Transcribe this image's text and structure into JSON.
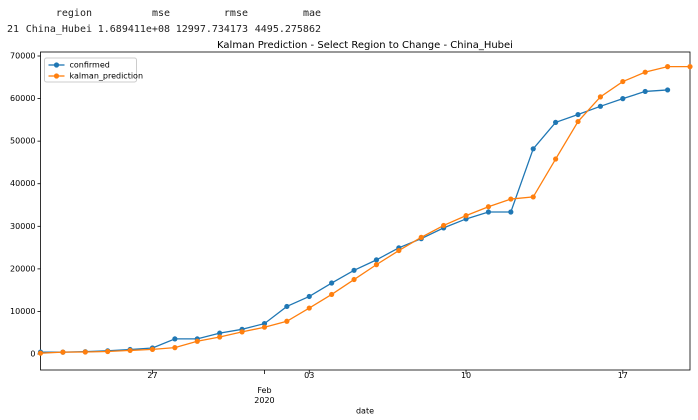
{
  "table": {
    "columns": [
      "region",
      "mse",
      "rmse",
      "mae"
    ],
    "rows": [
      [
        "21",
        "China_Hubei",
        "1.689411e+08",
        "12997.734173",
        "4495.275862"
      ]
    ]
  },
  "chart_data": {
    "type": "line",
    "title": "Kalman Prediction - Select Region to Change - China_Hubei",
    "xlabel": "date",
    "x": [
      "2020-01-22",
      "2020-01-23",
      "2020-01-24",
      "2020-01-25",
      "2020-01-26",
      "2020-01-27",
      "2020-01-28",
      "2020-01-29",
      "2020-01-30",
      "2020-01-31",
      "2020-02-01",
      "2020-02-02",
      "2020-02-03",
      "2020-02-04",
      "2020-02-05",
      "2020-02-06",
      "2020-02-07",
      "2020-02-08",
      "2020-02-09",
      "2020-02-10",
      "2020-02-11",
      "2020-02-12",
      "2020-02-13",
      "2020-02-14",
      "2020-02-15",
      "2020-02-16",
      "2020-02-17",
      "2020-02-18",
      "2020-02-19",
      "2020-02-20"
    ],
    "series": [
      {
        "name": "confirmed",
        "color": "#1f77b4",
        "values": [
          444,
          444,
          549,
          761,
          1058,
          1423,
          3554,
          3554,
          4903,
          5806,
          7153,
          11177,
          13522,
          16678,
          19665,
          22112,
          24953,
          27100,
          29631,
          31728,
          33366,
          33366,
          48206,
          54406,
          56249,
          58182,
          59989,
          61682,
          62031,
          null
        ]
      },
      {
        "name": "kalman_prediction",
        "color": "#ff7f0e",
        "values": [
          200,
          440,
          480,
          600,
          850,
          1100,
          1500,
          3000,
          4000,
          5200,
          6300,
          7700,
          10800,
          14000,
          17500,
          21000,
          24300,
          27400,
          30200,
          32500,
          34600,
          36400,
          36900,
          45800,
          54600,
          60400,
          64000,
          66200,
          67500,
          67500
        ]
      }
    ],
    "xlim": [
      "2020-01-22",
      "2020-02-20"
    ],
    "xticks": [
      {
        "value": "2020-01-27",
        "label": "27"
      },
      {
        "value": "2020-02-01",
        "label": "Feb\n2020"
      },
      {
        "value": "2020-02-03",
        "label": "03"
      },
      {
        "value": "2020-02-10",
        "label": "10"
      },
      {
        "value": "2020-02-17",
        "label": "17"
      }
    ],
    "ylim": [
      -3750,
      70940
    ],
    "yticks": [
      0,
      10000,
      20000,
      30000,
      40000,
      50000,
      60000,
      70000
    ],
    "legend": "upper left",
    "markers": true
  }
}
